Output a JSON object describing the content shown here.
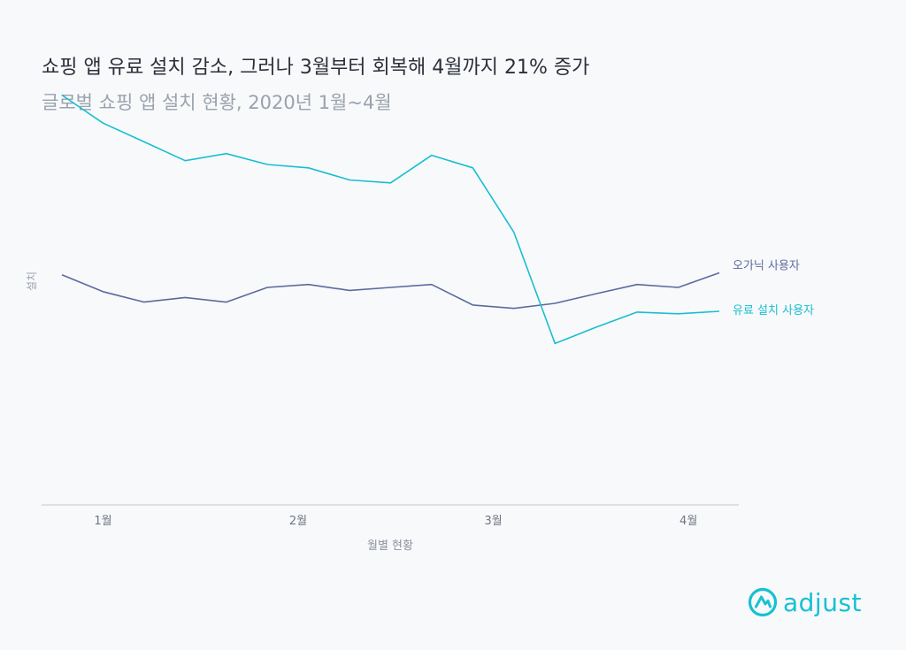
{
  "chart_data": {
    "type": "line",
    "title": "쇼핑 앱 유료 설치 감소, 그러나 3월부터 회복해 4월까지 21% 증가",
    "subtitle": "글로벌 쇼핑 앱 설치 현황, 2020년 1월~4월",
    "xlabel": "월별 현황",
    "ylabel": "설치",
    "x": [
      0,
      1,
      2,
      3,
      4,
      5,
      6,
      7,
      8,
      9,
      10,
      11,
      12,
      13,
      14,
      15,
      16
    ],
    "tick_labels": [
      "1월",
      "2월",
      "3월",
      "4월"
    ],
    "tick_positions": [
      1,
      5.75,
      10.5,
      15.25
    ],
    "ylim": [
      0,
      100
    ],
    "grid": false,
    "legend": "right, at line ends",
    "series": [
      {
        "name": "오가닉 사용자",
        "color": "#5b6a9e",
        "values": [
          55,
          51,
          48.5,
          49.6,
          48.5,
          52,
          52.7,
          51.3,
          52,
          52.7,
          47.8,
          47,
          48.2,
          50.5,
          52.7,
          52,
          55.5
        ]
      },
      {
        "name": "유료 설치 사용자",
        "color": "#17bfd0",
        "values": [
          98,
          91.3,
          86.8,
          82.3,
          84,
          81.4,
          80.6,
          77.7,
          77,
          83.6,
          80.6,
          65.2,
          38.6,
          42.5,
          46.1,
          45.7,
          46.3
        ]
      }
    ]
  },
  "brand": {
    "name": "adjust",
    "color": "#16c1d2",
    "icon": "adjust-logo-icon"
  }
}
